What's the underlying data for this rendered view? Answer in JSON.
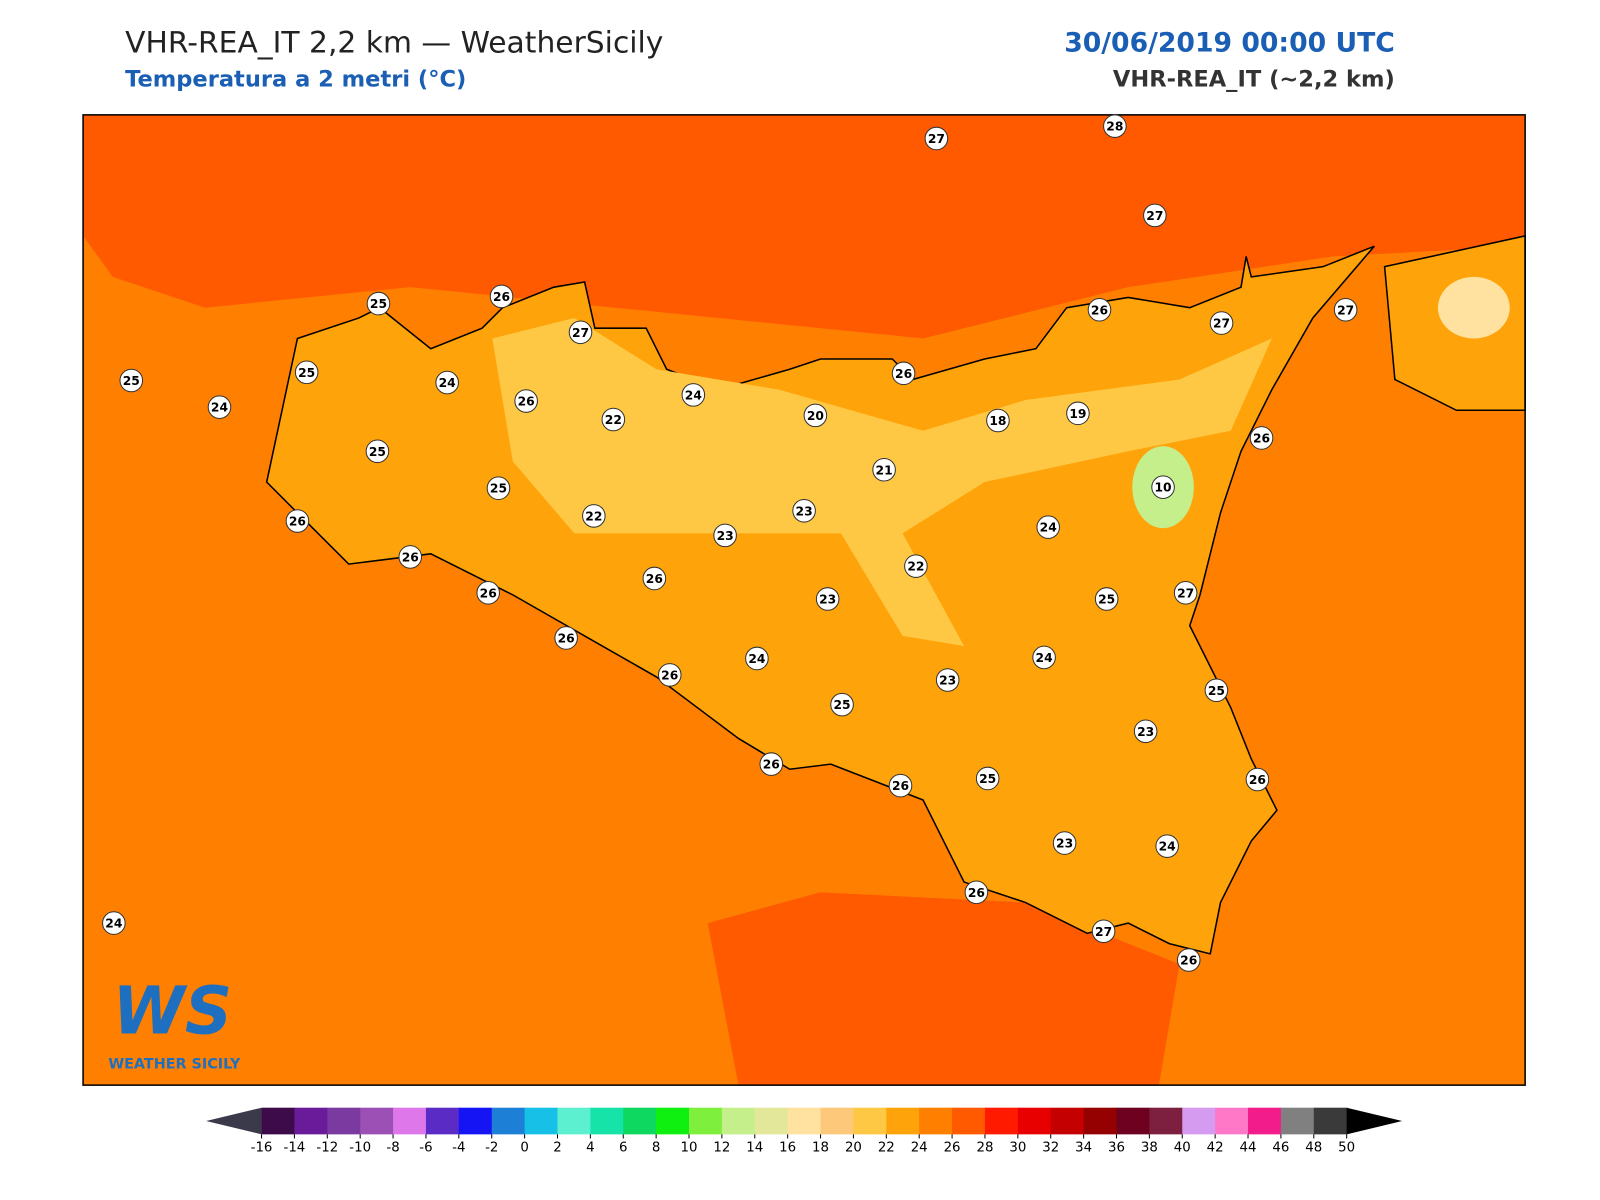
{
  "header": {
    "title": "VHR-REA_IT 2,2 km — WeatherSicily",
    "subtitle": "Temperatura a 2 metri (°C)",
    "date": "30/06/2019 00:00 UTC",
    "model": "VHR-REA_IT (~2,2 km)"
  },
  "logo": {
    "mark": "WS",
    "name": "WEATHER SICILY"
  },
  "stations": [
    27,
    28,
    27,
    25,
    26,
    27,
    25,
    24,
    25,
    24,
    26,
    22,
    24,
    20,
    26,
    26,
    27,
    27,
    18,
    19,
    26,
    10,
    21,
    25,
    25,
    22,
    23,
    23,
    24,
    22,
    26,
    26,
    26,
    26,
    23,
    25,
    27,
    26,
    24,
    24,
    26,
    23,
    25,
    25,
    23,
    26,
    26,
    25,
    26,
    23,
    24,
    26,
    27,
    26,
    24
  ],
  "colorbar": {
    "ticks": [
      -16,
      -14,
      -12,
      -10,
      -8,
      -6,
      -4,
      -2,
      0,
      2,
      4,
      6,
      8,
      10,
      12,
      14,
      16,
      18,
      20,
      22,
      24,
      26,
      28,
      30,
      32,
      34,
      36,
      38,
      40,
      42,
      44,
      46,
      48,
      50
    ],
    "colors": [
      "#3d0a4a",
      "#6a1b9a",
      "#7b3aa0",
      "#9c4fb5",
      "#dd77ea",
      "#5b2bc6",
      "#1414f5",
      "#1e7fd6",
      "#16c0e6",
      "#5cf0d0",
      "#16e3a8",
      "#0ed860",
      "#10f010",
      "#7def3c",
      "#c5ef8a",
      "#e2e79a",
      "#ffe2a0",
      "#fdc87a",
      "#fec844",
      "#ffa30a",
      "#ff8000",
      "#ff5a00",
      "#ff1a00",
      "#e80000",
      "#c40000",
      "#950000",
      "#6e0020",
      "#7d2040",
      "#d49bf0",
      "#ff78c8",
      "#f21d8b",
      "#808080",
      "#3a3a3a"
    ],
    "under_color": "#3a3a4a",
    "over_color": "#000000"
  }
}
